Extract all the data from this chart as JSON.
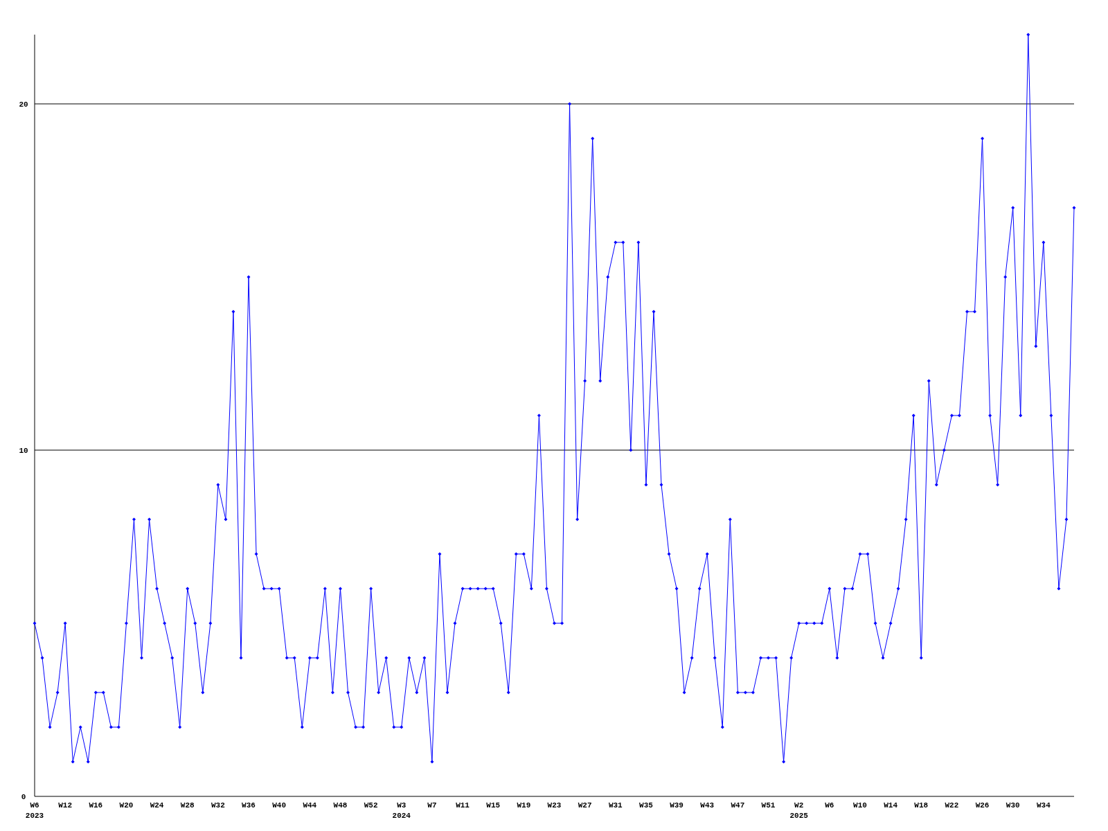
{
  "chart_data": {
    "type": "line",
    "categories": [
      "W6\n2023",
      null,
      null,
      null,
      "W12",
      null,
      null,
      null,
      "W16",
      null,
      null,
      null,
      "W20",
      null,
      null,
      null,
      "W24",
      null,
      null,
      null,
      "W28",
      null,
      null,
      null,
      "W32",
      null,
      null,
      null,
      "W36",
      null,
      null,
      null,
      "W40",
      null,
      null,
      null,
      "W44",
      null,
      null,
      null,
      "W48",
      null,
      null,
      null,
      "W52",
      null,
      null,
      null,
      "W3\n2024",
      null,
      null,
      null,
      "W7",
      null,
      null,
      null,
      "W11",
      null,
      null,
      null,
      "W15",
      null,
      null,
      null,
      "W19",
      null,
      null,
      null,
      "W23",
      null,
      null,
      null,
      "W27",
      null,
      null,
      null,
      "W31",
      null,
      null,
      null,
      "W35",
      null,
      null,
      null,
      "W39",
      null,
      null,
      null,
      "W43",
      null,
      null,
      null,
      "W47",
      null,
      null,
      null,
      "W51",
      null,
      null,
      null,
      "W2\n2025",
      null,
      null,
      null,
      "W6",
      null,
      null,
      null,
      "W10",
      null,
      null,
      null,
      "W14",
      null,
      null,
      null,
      "W18",
      null,
      null,
      null,
      "W22",
      null,
      null,
      null,
      "W26",
      null,
      null,
      null,
      "W30",
      null,
      null,
      null,
      "W34",
      null,
      null,
      null,
      null
    ],
    "series": [
      {
        "color": "#0000ff",
        "values": [
          5,
          4,
          2,
          3,
          5,
          1,
          2,
          1,
          3,
          3,
          2,
          2,
          5,
          8,
          4,
          8,
          6,
          5,
          4,
          2,
          6,
          5,
          3,
          5,
          9,
          8,
          14,
          4,
          15,
          7,
          6,
          6,
          6,
          4,
          4,
          2,
          4,
          4,
          6,
          3,
          6,
          3,
          2,
          2,
          6,
          3,
          4,
          2,
          2,
          4,
          3,
          4,
          1,
          7,
          3,
          5,
          6,
          6,
          6,
          6,
          6,
          5,
          3,
          7,
          7,
          6,
          11,
          6,
          5,
          5,
          20,
          8,
          12,
          19,
          12,
          15,
          16,
          16,
          10,
          16,
          9,
          14,
          9,
          7,
          6,
          3,
          4,
          6,
          7,
          4,
          2,
          8,
          3,
          3,
          3,
          4,
          4,
          4,
          1,
          4,
          5,
          5,
          5,
          5,
          6,
          4,
          6,
          6,
          7,
          7,
          5,
          4,
          5,
          6,
          8,
          11,
          4,
          12,
          9,
          10,
          11,
          11,
          14,
          14,
          19,
          11,
          9,
          15,
          17,
          11,
          22,
          13,
          16,
          11,
          6,
          8,
          17
        ]
      }
    ],
    "ylim": [
      0,
      22
    ],
    "yticks": [
      0,
      10,
      20
    ],
    "grid": "y",
    "marker": "diamond",
    "line_style": "solid"
  }
}
